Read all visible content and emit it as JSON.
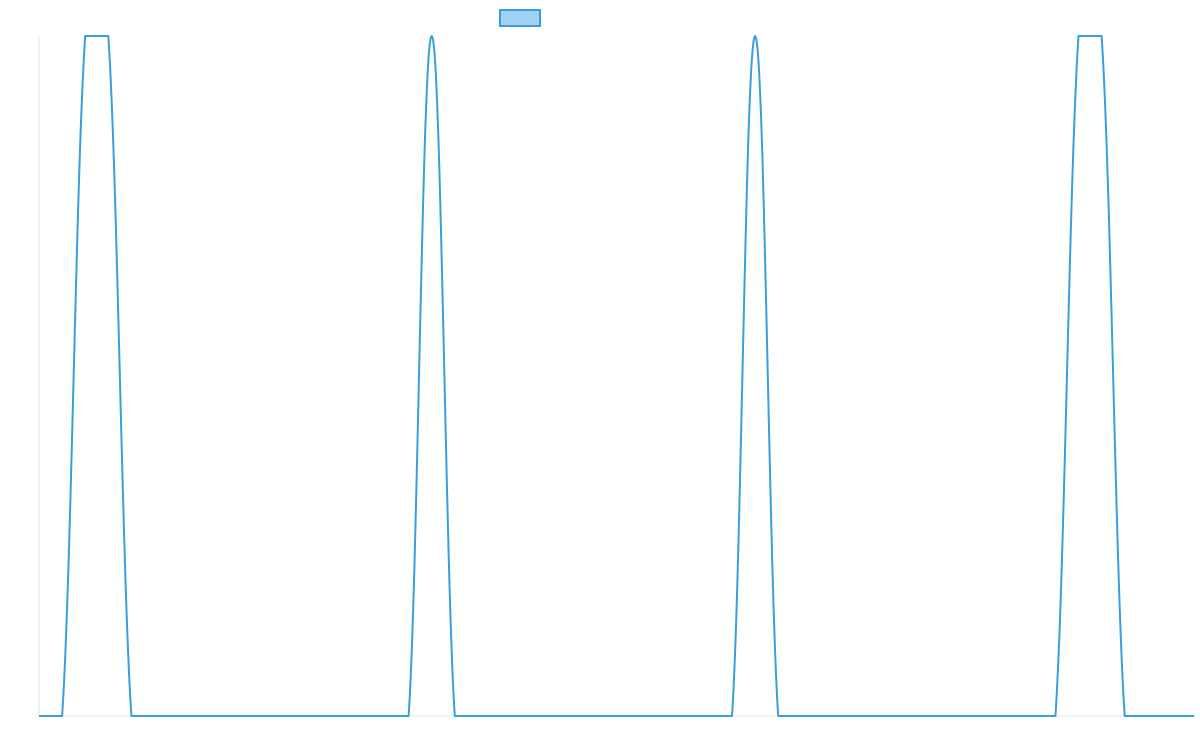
{
  "chart_data": {
    "type": "line",
    "title": "",
    "xlabel": "",
    "ylabel": "",
    "xlim": [
      0,
      1000
    ],
    "ylim": [
      0,
      1
    ],
    "grid": false,
    "legend": {
      "placement": "top-center",
      "entries": [
        ""
      ]
    },
    "series": [
      {
        "x": [
          0,
          20,
          40,
          60,
          80,
          100,
          120,
          140,
          160,
          180,
          200,
          220,
          240,
          260,
          280,
          300,
          320,
          340,
          360,
          380,
          400,
          420,
          440,
          460,
          480,
          500,
          520,
          540,
          560,
          580,
          600,
          620,
          640,
          660,
          680,
          700,
          720,
          740,
          760,
          780,
          800,
          820,
          840,
          860,
          880,
          900,
          920,
          940,
          960,
          980,
          1000
        ],
        "values": [
          0,
          0,
          1,
          1,
          0,
          0,
          0,
          0,
          0,
          0,
          0,
          0,
          0,
          0,
          0,
          0,
          0,
          1,
          0,
          0,
          0,
          0,
          0,
          0,
          0,
          0,
          0,
          0,
          0,
          0,
          0,
          1,
          0,
          0,
          0,
          0,
          0,
          0,
          0,
          0,
          0,
          0,
          0,
          0,
          0,
          1,
          1,
          0,
          0,
          0,
          0
        ]
      }
    ]
  },
  "colors": {
    "line": "#3a9ede",
    "legend_fill": "#a0d2f5",
    "axis": "#e6e6e6"
  }
}
